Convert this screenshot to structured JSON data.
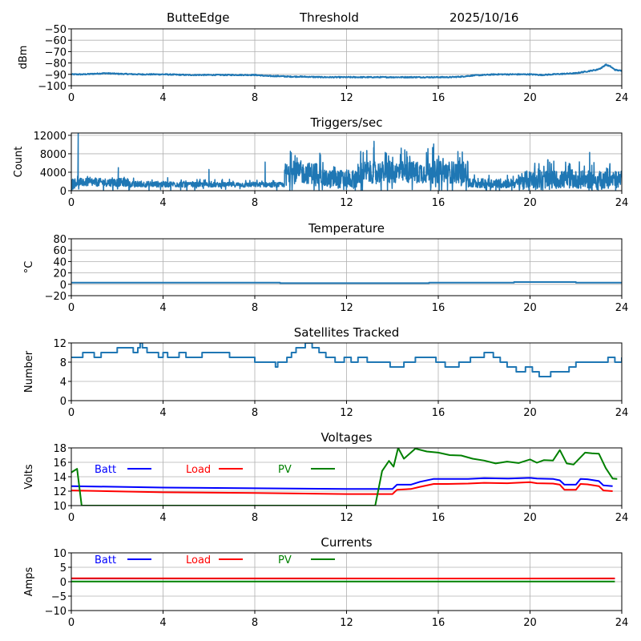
{
  "header": {
    "station": "ButteEdge",
    "mode": "Threshold",
    "date": "2025/10/16"
  },
  "chart_data": [
    {
      "id": "noise",
      "type": "line",
      "title": "",
      "xlabel": "",
      "ylabel": "dBm",
      "xlim": [
        0,
        24
      ],
      "ylim": [
        -100,
        -50
      ],
      "xticks": [
        0,
        4,
        8,
        12,
        16,
        20,
        24
      ],
      "yticks": [
        -100,
        -90,
        -80,
        -70,
        -60,
        -50
      ],
      "ytick_labels": [
        "−100",
        "−90",
        "−80",
        "−70",
        "−60",
        "−50"
      ],
      "grid": true,
      "series": [
        {
          "name": "noise",
          "color": "#1f77b4",
          "x": [
            0,
            0.5,
            1,
            1.5,
            2,
            3,
            4,
            5,
            6,
            7,
            8,
            8.3,
            8.6,
            9,
            9.5,
            10,
            11,
            12,
            13,
            14,
            15,
            16,
            16.5,
            17,
            17.5,
            18,
            18.5,
            19,
            20,
            20.5,
            21,
            21.5,
            22,
            22.3,
            22.6,
            22.9,
            23.1,
            23.3,
            23.5,
            23.7,
            24
          ],
          "y": [
            -90,
            -90,
            -89.5,
            -89,
            -89.5,
            -90,
            -90,
            -90.5,
            -90.5,
            -90.5,
            -90.5,
            -91,
            -91.5,
            -91.5,
            -92,
            -92,
            -92.5,
            -92.5,
            -92.5,
            -92.5,
            -92.5,
            -92.5,
            -92.5,
            -92,
            -91,
            -90.5,
            -90,
            -90,
            -90,
            -90.5,
            -90,
            -89.5,
            -89,
            -88,
            -87,
            -86,
            -84.5,
            -81.5,
            -83,
            -86,
            -87
          ]
        }
      ]
    },
    {
      "id": "triggers",
      "type": "line",
      "title": "Triggers/sec",
      "xlabel": "",
      "ylabel": "Count",
      "xlim": [
        0,
        24
      ],
      "ylim": [
        0,
        12500
      ],
      "xticks": [
        0,
        4,
        8,
        12,
        16,
        20,
        24
      ],
      "yticks": [
        0,
        4000,
        8000,
        12000
      ],
      "ytick_labels": [
        "0",
        "4000",
        "8000",
        "12000"
      ],
      "grid": true,
      "series": [
        {
          "name": "triggers",
          "color": "#1f77b4",
          "segments": [
            {
              "x0": 0,
              "x1": 2.5,
              "base": 1800,
              "amp": 2200
            },
            {
              "x0": 2.5,
              "x1": 5,
              "base": 1400,
              "amp": 1600
            },
            {
              "x0": 5,
              "x1": 9.3,
              "base": 1300,
              "amp": 1300
            },
            {
              "x0": 9.3,
              "x1": 11,
              "base": 3800,
              "amp": 5800
            },
            {
              "x0": 11,
              "x1": 12.5,
              "base": 2500,
              "amp": 5000
            },
            {
              "x0": 12.5,
              "x1": 17.3,
              "base": 4000,
              "amp": 6000
            },
            {
              "x0": 17.3,
              "x1": 19.5,
              "base": 1600,
              "amp": 2600
            },
            {
              "x0": 19.5,
              "x1": 24,
              "base": 2400,
              "amp": 4800
            }
          ],
          "spikes": [
            {
              "x": 0.3,
              "y": 12500
            },
            {
              "x": 2.05,
              "y": 5000
            },
            {
              "x": 6.0,
              "y": 4600
            },
            {
              "x": 8.45,
              "y": 6200
            },
            {
              "x": 13.2,
              "y": 10700
            },
            {
              "x": 15.8,
              "y": 10100
            },
            {
              "x": 22.6,
              "y": 8300
            }
          ]
        }
      ]
    },
    {
      "id": "temperature",
      "type": "line",
      "title": "Temperature",
      "xlabel": "",
      "ylabel": "°C",
      "xlim": [
        0,
        24
      ],
      "ylim": [
        -20,
        80
      ],
      "xticks": [
        0,
        4,
        8,
        12,
        16,
        20,
        24
      ],
      "yticks": [
        -20,
        0,
        20,
        40,
        60,
        80
      ],
      "ytick_labels": [
        "−20",
        "0",
        "20",
        "40",
        "60",
        "80"
      ],
      "grid": true,
      "series": [
        {
          "name": "temperature",
          "color": "#1f77b4",
          "x": [
            0,
            9.1,
            9.1,
            15.6,
            15.6,
            19.3,
            19.3,
            22.0,
            22.0,
            24
          ],
          "y": [
            3,
            3,
            2,
            2,
            3,
            3,
            4,
            4,
            3,
            3
          ]
        }
      ]
    },
    {
      "id": "satellites",
      "type": "line",
      "title": "Satellites Tracked",
      "xlabel": "",
      "ylabel": "Number",
      "xlim": [
        0,
        24
      ],
      "ylim": [
        0,
        12
      ],
      "xticks": [
        0,
        4,
        8,
        12,
        16,
        20,
        24
      ],
      "yticks": [
        0,
        4,
        8,
        12
      ],
      "ytick_labels": [
        "0",
        "4",
        "8",
        "12"
      ],
      "grid": true,
      "series": [
        {
          "name": "satellites",
          "color": "#1f77b4",
          "x": [
            0,
            0.5,
            1,
            1.3,
            2,
            2.7,
            2.9,
            3.0,
            3.1,
            3.3,
            3.8,
            4.0,
            4.2,
            4.7,
            5.0,
            5.1,
            5.3,
            5.7,
            6.4,
            6.6,
            6.9,
            7.6,
            8.0,
            8.4,
            8.9,
            9.0,
            9.2,
            9.4,
            9.6,
            9.8,
            10.2,
            10.5,
            10.8,
            11.1,
            11.5,
            11.9,
            12.2,
            12.5,
            12.9,
            13.3,
            13.9,
            14.5,
            15.0,
            15.5,
            15.9,
            16.3,
            16.9,
            17.4,
            18.0,
            18.4,
            18.7,
            19.0,
            19.4,
            19.8,
            20.1,
            20.4,
            20.9,
            21.7,
            22.0,
            22.5,
            23.0,
            23.4,
            23.7,
            24
          ],
          "y": [
            9,
            10,
            9,
            10,
            11,
            10,
            11,
            12,
            11,
            10,
            9,
            10,
            9,
            10,
            9,
            9,
            9,
            10,
            10,
            10,
            9,
            9,
            8,
            8,
            7,
            8,
            8,
            9,
            10,
            11,
            12,
            11,
            10,
            9,
            8,
            9,
            8,
            9,
            8,
            8,
            7,
            8,
            9,
            9,
            8,
            7,
            8,
            9,
            10,
            9,
            8,
            7,
            6,
            7,
            6,
            5,
            6,
            7,
            8,
            8,
            8,
            9,
            8,
            9
          ]
        }
      ]
    },
    {
      "id": "voltages",
      "type": "line",
      "title": "Voltages",
      "xlabel": "",
      "ylabel": "Volts",
      "xlim": [
        0,
        24
      ],
      "ylim": [
        10,
        18
      ],
      "xticks": [
        0,
        4,
        8,
        12,
        16,
        20,
        24
      ],
      "yticks": [
        10,
        12,
        14,
        16,
        18
      ],
      "ytick_labels": [
        "10",
        "12",
        "14",
        "16",
        "18"
      ],
      "grid": true,
      "legend": {
        "placement": "top-left",
        "entries": [
          "Batt",
          "Load",
          "PV"
        ]
      },
      "series": [
        {
          "name": "Batt",
          "color": "#0000ff",
          "x": [
            0,
            4,
            8,
            12,
            13,
            14.0,
            14.2,
            14.8,
            15.2,
            15.8,
            16.4,
            17.3,
            18.0,
            19.0,
            20.0,
            20.3,
            21.0,
            21.3,
            21.5,
            22.0,
            22.2,
            22.5,
            23.0,
            23.2,
            23.6
          ],
          "y": [
            12.7,
            12.5,
            12.4,
            12.3,
            12.3,
            12.3,
            12.9,
            12.9,
            13.3,
            13.7,
            13.7,
            13.7,
            13.8,
            13.75,
            13.85,
            13.75,
            13.7,
            13.5,
            12.9,
            12.9,
            13.7,
            13.65,
            13.4,
            12.8,
            12.7
          ]
        },
        {
          "name": "Load",
          "color": "#ff0000",
          "x": [
            0,
            4,
            8,
            12,
            13,
            14.0,
            14.2,
            14.8,
            15.2,
            15.8,
            16.4,
            17.3,
            18.0,
            19.0,
            20.0,
            20.3,
            21.0,
            21.3,
            21.5,
            22.0,
            22.2,
            22.5,
            23.0,
            23.2,
            23.6
          ],
          "y": [
            12.1,
            11.85,
            11.75,
            11.6,
            11.6,
            11.6,
            12.2,
            12.3,
            12.6,
            13.0,
            13.0,
            13.05,
            13.15,
            13.1,
            13.25,
            13.1,
            13.05,
            12.9,
            12.2,
            12.2,
            13.0,
            12.95,
            12.7,
            12.1,
            12.0
          ]
        },
        {
          "name": "PV",
          "color": "#008000",
          "x": [
            0,
            0.25,
            0.45,
            13.25,
            13.55,
            13.85,
            14.05,
            14.25,
            14.5,
            15.0,
            15.5,
            16.0,
            16.5,
            17.0,
            17.5,
            18.0,
            18.5,
            19.0,
            19.5,
            20.0,
            20.3,
            20.6,
            21.0,
            21.3,
            21.6,
            21.9,
            22.4,
            22.7,
            23.0,
            23.3,
            23.6,
            23.8
          ],
          "y": [
            14.6,
            15.1,
            10,
            10,
            14.8,
            16.2,
            15.4,
            18.0,
            16.5,
            17.9,
            17.5,
            17.35,
            17.0,
            16.95,
            16.5,
            16.25,
            15.85,
            16.1,
            15.9,
            16.4,
            15.95,
            16.3,
            16.25,
            17.7,
            15.85,
            15.7,
            17.35,
            17.25,
            17.2,
            15.2,
            13.75,
            13.7
          ]
        }
      ]
    },
    {
      "id": "currents",
      "type": "line",
      "title": "Currents",
      "xlabel": "",
      "ylabel": "Amps",
      "xlim": [
        0,
        24
      ],
      "ylim": [
        -10,
        10
      ],
      "xticks": [
        0,
        4,
        8,
        12,
        16,
        20,
        24
      ],
      "yticks": [
        -10,
        -5,
        0,
        5,
        10
      ],
      "ytick_labels": [
        "−10",
        "−5",
        "0",
        "5",
        "10"
      ],
      "grid": true,
      "legend": {
        "placement": "top-left",
        "entries": [
          "Batt",
          "Load",
          "PV"
        ]
      },
      "series": [
        {
          "name": "Batt",
          "color": "#0000ff",
          "x": [
            0,
            23.7
          ],
          "y": [
            1.1,
            1.1
          ]
        },
        {
          "name": "Load",
          "color": "#ff0000",
          "x": [
            0,
            9,
            15,
            23.7
          ],
          "y": [
            1.2,
            1.15,
            1.1,
            1.15
          ]
        },
        {
          "name": "PV",
          "color": "#008000",
          "x": [
            0,
            23.7
          ],
          "y": [
            0.05,
            0.05
          ]
        }
      ]
    }
  ]
}
